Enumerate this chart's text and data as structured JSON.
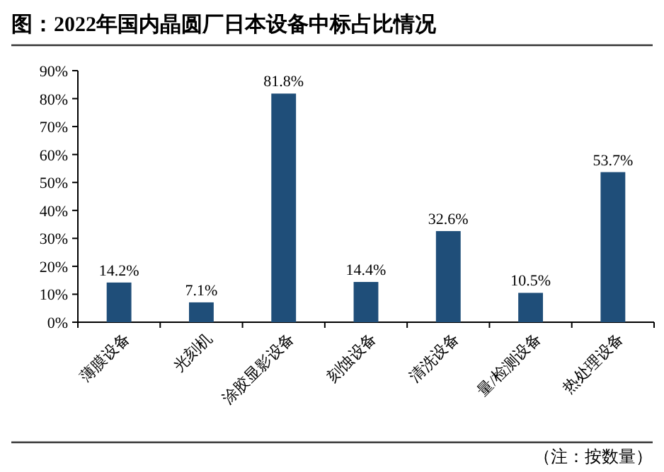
{
  "chart_data": {
    "type": "bar",
    "title": "图：2022年国内晶圆厂日本设备中标占比情况",
    "categories": [
      "薄膜设备",
      "光刻机",
      "涂胶显影设备",
      "刻蚀设备",
      "清洗设备",
      "量/检测设备",
      "热处理设备"
    ],
    "values": [
      14.2,
      7.1,
      81.8,
      14.4,
      32.6,
      10.5,
      53.7
    ],
    "value_labels": [
      "14.2%",
      "7.1%",
      "81.8%",
      "14.4%",
      "32.6%",
      "10.5%",
      "53.7%"
    ],
    "color": "#1f4e79",
    "ylim": [
      0,
      90
    ],
    "yticks": [
      {
        "value": 0,
        "label": "0%"
      },
      {
        "value": 10,
        "label": "10%"
      },
      {
        "value": 20,
        "label": "20%"
      },
      {
        "value": 30,
        "label": "30%"
      },
      {
        "value": 40,
        "label": "40%"
      },
      {
        "value": 50,
        "label": "50%"
      },
      {
        "value": 60,
        "label": "60%"
      },
      {
        "value": 70,
        "label": "70%"
      },
      {
        "value": 80,
        "label": "80%"
      },
      {
        "value": 90,
        "label": "90%"
      }
    ],
    "annotations": [
      "（注：按数量）"
    ]
  }
}
